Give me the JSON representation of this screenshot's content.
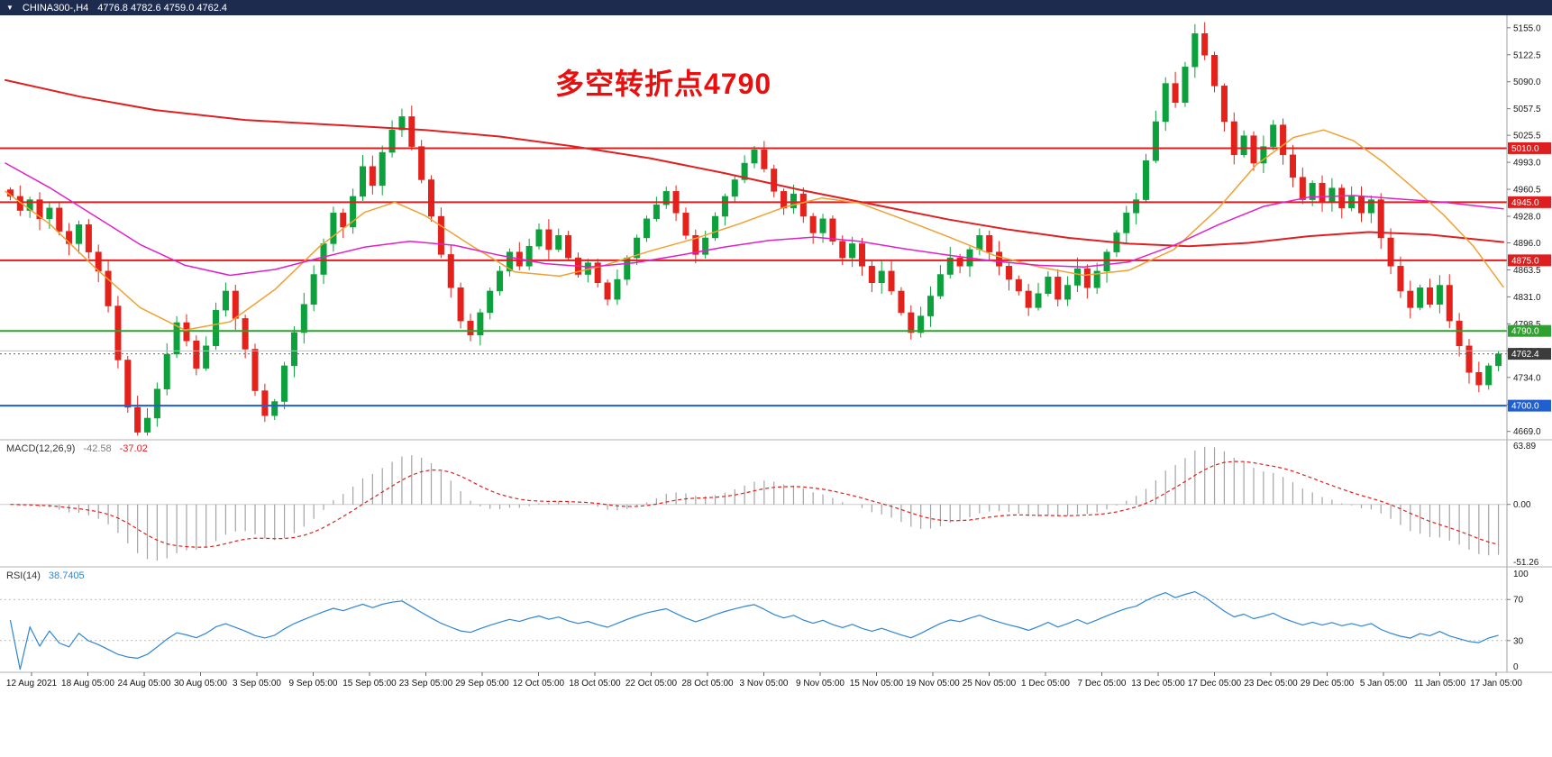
{
  "header": {
    "dropdown_icon": "▼",
    "symbol": "CHINA300-,H4",
    "ohlc": "4776.8 4782.6 4759.0 4762.4"
  },
  "chart_data": {
    "type": "candlestick",
    "title": "CHINA300- H4 chart with MACD and RSI",
    "annotation": {
      "text": "多空转折点4790",
      "color": "#e90f0f"
    },
    "main": {
      "price_range": [
        4660,
        5170
      ],
      "axis_ticks": [
        5155.0,
        5122.5,
        5090.0,
        5057.5,
        5025.5,
        4993.0,
        4960.5,
        4928.0,
        4896.0,
        4863.5,
        4831.0,
        4798.5,
        4766.0,
        4734.0,
        4701.5,
        4669.0
      ],
      "candles": {
        "first_open": 4960,
        "up_color": "#0ca13c",
        "down_color": "#e4211b",
        "closes": [
          4952,
          4935,
          4948,
          4925,
          4938,
          4910,
          4895,
          4918,
          4885,
          4862,
          4820,
          4755,
          4698,
          4668,
          4685,
          4720,
          4762,
          4800,
          4778,
          4745,
          4772,
          4815,
          4838,
          4805,
          4768,
          4718,
          4688,
          4705,
          4748,
          4788,
          4822,
          4858,
          4895,
          4932,
          4915,
          4952,
          4988,
          4965,
          5005,
          5032,
          5048,
          5012,
          4972,
          4928,
          4882,
          4842,
          4802,
          4785,
          4812,
          4838,
          4862,
          4885,
          4868,
          4892,
          4912,
          4888,
          4905,
          4878,
          4858,
          4872,
          4848,
          4828,
          4852,
          4878,
          4902,
          4925,
          4942,
          4958,
          4932,
          4905,
          4882,
          4902,
          4928,
          4952,
          4972,
          4992,
          5008,
          4985,
          4958,
          4938,
          4955,
          4928,
          4908,
          4925,
          4898,
          4878,
          4895,
          4868,
          4848,
          4862,
          4838,
          4812,
          4788,
          4808,
          4832,
          4858,
          4878,
          4868,
          4888,
          4905,
          4885,
          4868,
          4852,
          4838,
          4818,
          4835,
          4855,
          4828,
          4845,
          4865,
          4842,
          4862,
          4885,
          4908,
          4932,
          4948,
          4995,
          5042,
          5088,
          5065,
          5108,
          5148,
          5122,
          5085,
          5042,
          5002,
          5025,
          4992,
          5012,
          5038,
          5002,
          4975,
          4948,
          4968,
          4945,
          4962,
          4938,
          4952,
          4932,
          4948,
          4902,
          4868,
          4838,
          4818,
          4842,
          4822,
          4845,
          4802,
          4772,
          4740,
          4725,
          4748,
          4762.4
        ]
      },
      "moving_averages": [
        {
          "name": "ma-long-red",
          "color": "#e02020",
          "width": 2,
          "points": [
            [
              0,
              5092
            ],
            [
              0.05,
              5072
            ],
            [
              0.1,
              5056
            ],
            [
              0.16,
              5044
            ],
            [
              0.22,
              5038
            ],
            [
              0.28,
              5032
            ],
            [
              0.33,
              5024
            ],
            [
              0.38,
              5012
            ],
            [
              0.43,
              4998
            ],
            [
              0.48,
              4980
            ],
            [
              0.53,
              4960
            ],
            [
              0.58,
              4942
            ],
            [
              0.63,
              4924
            ],
            [
              0.67,
              4912
            ],
            [
              0.71,
              4902
            ],
            [
              0.75,
              4895
            ],
            [
              0.79,
              4892
            ],
            [
              0.83,
              4896
            ],
            [
              0.87,
              4904
            ],
            [
              0.91,
              4909
            ],
            [
              0.95,
              4906
            ],
            [
              1,
              4897
            ]
          ]
        },
        {
          "name": "ma-fast-orange",
          "color": "#f0a132",
          "width": 1.5,
          "points": [
            [
              0,
              4958
            ],
            [
              0.03,
              4918
            ],
            [
              0.06,
              4866
            ],
            [
              0.09,
              4818
            ],
            [
              0.12,
              4791
            ],
            [
              0.15,
              4801
            ],
            [
              0.18,
              4840
            ],
            [
              0.21,
              4892
            ],
            [
              0.24,
              4933
            ],
            [
              0.26,
              4945
            ],
            [
              0.28,
              4929
            ],
            [
              0.31,
              4894
            ],
            [
              0.34,
              4861
            ],
            [
              0.37,
              4856
            ],
            [
              0.4,
              4869
            ],
            [
              0.43,
              4886
            ],
            [
              0.46,
              4901
            ],
            [
              0.49,
              4919
            ],
            [
              0.52,
              4939
            ],
            [
              0.545,
              4950
            ],
            [
              0.57,
              4944
            ],
            [
              0.6,
              4924
            ],
            [
              0.63,
              4903
            ],
            [
              0.66,
              4881
            ],
            [
              0.69,
              4867
            ],
            [
              0.72,
              4857
            ],
            [
              0.75,
              4863
            ],
            [
              0.78,
              4888
            ],
            [
              0.81,
              4938
            ],
            [
              0.835,
              4990
            ],
            [
              0.86,
              5023
            ],
            [
              0.88,
              5032
            ],
            [
              0.9,
              5019
            ],
            [
              0.92,
              4993
            ],
            [
              0.94,
              4962
            ],
            [
              0.96,
              4930
            ],
            [
              0.98,
              4892
            ],
            [
              1,
              4843
            ]
          ]
        },
        {
          "name": "ma-mid-magenta",
          "color": "#e020c8",
          "width": 1.5,
          "points": [
            [
              0,
              4992
            ],
            [
              0.03,
              4962
            ],
            [
              0.06,
              4928
            ],
            [
              0.09,
              4894
            ],
            [
              0.12,
              4869
            ],
            [
              0.15,
              4857
            ],
            [
              0.18,
              4864
            ],
            [
              0.21,
              4878
            ],
            [
              0.24,
              4891
            ],
            [
              0.27,
              4898
            ],
            [
              0.3,
              4893
            ],
            [
              0.33,
              4881
            ],
            [
              0.36,
              4871
            ],
            [
              0.39,
              4867
            ],
            [
              0.42,
              4872
            ],
            [
              0.45,
              4881
            ],
            [
              0.48,
              4891
            ],
            [
              0.51,
              4899
            ],
            [
              0.54,
              4903
            ],
            [
              0.57,
              4898
            ],
            [
              0.6,
              4889
            ],
            [
              0.63,
              4881
            ],
            [
              0.66,
              4874
            ],
            [
              0.69,
              4869
            ],
            [
              0.72,
              4867
            ],
            [
              0.75,
              4873
            ],
            [
              0.78,
              4893
            ],
            [
              0.81,
              4918
            ],
            [
              0.84,
              4940
            ],
            [
              0.87,
              4951
            ],
            [
              0.9,
              4953
            ],
            [
              0.93,
              4949
            ],
            [
              0.96,
              4945
            ],
            [
              1,
              4937
            ]
          ]
        }
      ],
      "hlines": [
        {
          "price": 5010.0,
          "label": "5010.0",
          "color": "#dd1f1f",
          "width": 2
        },
        {
          "price": 4945.0,
          "label": "4945.0",
          "color": "#dd1f1f",
          "width": 2
        },
        {
          "price": 4875.0,
          "label": "4875.0",
          "color": "#dd1f1f",
          "width": 2
        },
        {
          "price": 4790.0,
          "label": "4790.0",
          "color": "#2fa12f",
          "width": 2
        },
        {
          "price": 4766.0,
          "label": null,
          "color": "#a9c3dd",
          "width": 1
        },
        {
          "price": 4700.0,
          "label": "4700.0",
          "color": "#1f5fd0",
          "width": 2
        }
      ],
      "current_price": {
        "value": 4762.4,
        "label": "4762.4",
        "badge_color": "#3c3c3c"
      }
    },
    "macd": {
      "label": "MACD(12,26,9)",
      "value_main": "-42.58",
      "value_signal": "-37.02",
      "params": [
        12,
        26,
        9
      ],
      "axis_max": "63.89",
      "axis_zero": "0.00",
      "axis_min": "-51.26",
      "histogram_color": "#a3a3a3",
      "signal_color": "#df1f1f"
    },
    "rsi": {
      "label": "RSI(14)",
      "value": "38.7405",
      "period": 14,
      "levels": [
        70,
        30
      ],
      "axis_labels": [
        "100",
        "70",
        "30",
        "0"
      ],
      "line_color": "#2e86d5"
    },
    "time_axis": [
      "12 Aug 2021",
      "18 Aug 05:00",
      "24 Aug 05:00",
      "30 Aug 05:00",
      "3 Sep 05:00",
      "9 Sep 05:00",
      "15 Sep 05:00",
      "23 Sep 05:00",
      "29 Sep 05:00",
      "12 Oct 05:00",
      "18 Oct 05:00",
      "22 Oct 05:00",
      "28 Oct 05:00",
      "3 Nov 05:00",
      "9 Nov 05:00",
      "15 Nov 05:00",
      "19 Nov 05:00",
      "25 Nov 05:00",
      "1 Dec 05:00",
      "7 Dec 05:00",
      "13 Dec 05:00",
      "17 Dec 05:00",
      "23 Dec 05:00",
      "29 Dec 05:00",
      "5 Jan 05:00",
      "11 Jan 05:00",
      "17 Jan 05:00"
    ]
  }
}
